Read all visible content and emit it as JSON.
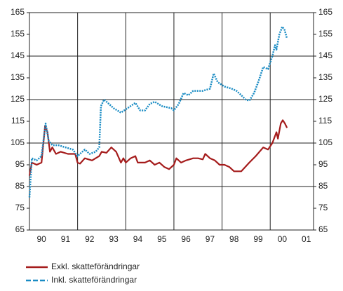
{
  "chart_data": {
    "type": "line",
    "xlim": [
      1990,
      2001.8
    ],
    "xticks": [
      {
        "value": 1990.5,
        "label": "90"
      },
      {
        "value": 1991.5,
        "label": "91"
      },
      {
        "value": 1992.5,
        "label": "92"
      },
      {
        "value": 1993.5,
        "label": "93"
      },
      {
        "value": 1994.5,
        "label": "94"
      },
      {
        "value": 1995.5,
        "label": "95"
      },
      {
        "value": 1996.5,
        "label": "96"
      },
      {
        "value": 1997.5,
        "label": "97"
      },
      {
        "value": 1998.5,
        "label": "98"
      },
      {
        "value": 1999.5,
        "label": "99"
      },
      {
        "value": 2000.5,
        "label": "00"
      },
      {
        "value": 2001.5,
        "label": "01"
      }
    ],
    "xgrid": [
      1992,
      1994,
      1996,
      1998,
      2000
    ],
    "ylim": [
      65,
      165
    ],
    "yticks": [
      65,
      75,
      85,
      95,
      105,
      115,
      125,
      135,
      145,
      155,
      165
    ],
    "y2lim": [
      65,
      165
    ],
    "y2ticks": [
      65,
      75,
      85,
      95,
      105,
      115,
      125,
      135,
      145,
      155,
      165
    ],
    "ygrid": [
      85,
      105,
      125,
      145
    ],
    "series": [
      {
        "name": "Exkl. skatteförändringar",
        "color": "#a51c1c",
        "style": "solid",
        "x": [
          1990.0,
          1990.1,
          1990.3,
          1990.5,
          1990.65,
          1990.75,
          1990.85,
          1990.95,
          1991.1,
          1991.3,
          1991.6,
          1991.9,
          1992.0,
          1992.1,
          1992.3,
          1992.6,
          1992.9,
          1993.0,
          1993.2,
          1993.4,
          1993.6,
          1993.8,
          1993.9,
          1994.0,
          1994.2,
          1994.4,
          1994.5,
          1994.8,
          1995.0,
          1995.2,
          1995.4,
          1995.6,
          1995.8,
          1996.0,
          1996.1,
          1996.3,
          1996.5,
          1996.8,
          1997.0,
          1997.2,
          1997.3,
          1997.5,
          1997.7,
          1997.9,
          1998.1,
          1998.3,
          1998.5,
          1998.8,
          1999.13,
          1999.4,
          1999.71,
          1999.91,
          2000.09,
          2000.26,
          2000.32,
          2000.44,
          2000.52,
          2000.61,
          2000.7
        ],
        "values": [
          90,
          96,
          95,
          96,
          113,
          110,
          101,
          103,
          100,
          101,
          100,
          100,
          96,
          95.5,
          98,
          97,
          99,
          101,
          100.5,
          103,
          101,
          96,
          98,
          96,
          98,
          99,
          96,
          96,
          97,
          95,
          96,
          94,
          93,
          95,
          98,
          96,
          97,
          98,
          98,
          97.5,
          100,
          98,
          97,
          95,
          95,
          94,
          92,
          92,
          96,
          99,
          103,
          102,
          105,
          110,
          107,
          114,
          115.5,
          114,
          112
        ]
      },
      {
        "name": "Inkl. skatteförändringar",
        "color": "#1a8cc4",
        "style": "dotted",
        "x": [
          1990.0,
          1990.1,
          1990.3,
          1990.5,
          1990.67,
          1990.8,
          1990.95,
          1991.2,
          1991.5,
          1991.8,
          1992.0,
          1992.3,
          1992.5,
          1992.75,
          1992.9,
          1992.97,
          1993.1,
          1993.3,
          1993.5,
          1993.8,
          1994.2,
          1994.4,
          1994.6,
          1994.8,
          1995.0,
          1995.2,
          1995.5,
          1995.9,
          1996.0,
          1996.2,
          1996.4,
          1996.6,
          1996.8,
          1997.2,
          1997.5,
          1997.65,
          1997.82,
          1998.1,
          1998.4,
          1998.6,
          1998.8,
          1998.98,
          1999.13,
          1999.33,
          1999.5,
          1999.71,
          1999.91,
          2000.09,
          2000.2,
          2000.26,
          2000.38,
          2000.5,
          2000.6,
          2000.7
        ],
        "values": [
          80,
          98,
          97,
          99,
          114,
          106,
          104,
          104,
          103,
          102,
          99,
          102,
          100,
          101,
          103,
          122,
          125,
          123,
          121,
          119,
          122,
          123.5,
          120,
          120,
          123,
          124,
          122,
          121,
          120,
          123,
          128,
          127,
          129,
          129,
          130,
          137,
          133,
          131,
          130,
          129,
          127,
          125,
          124.5,
          128,
          133,
          140,
          139,
          145,
          150,
          148,
          155,
          158.5,
          157,
          153
        ]
      }
    ]
  }
}
